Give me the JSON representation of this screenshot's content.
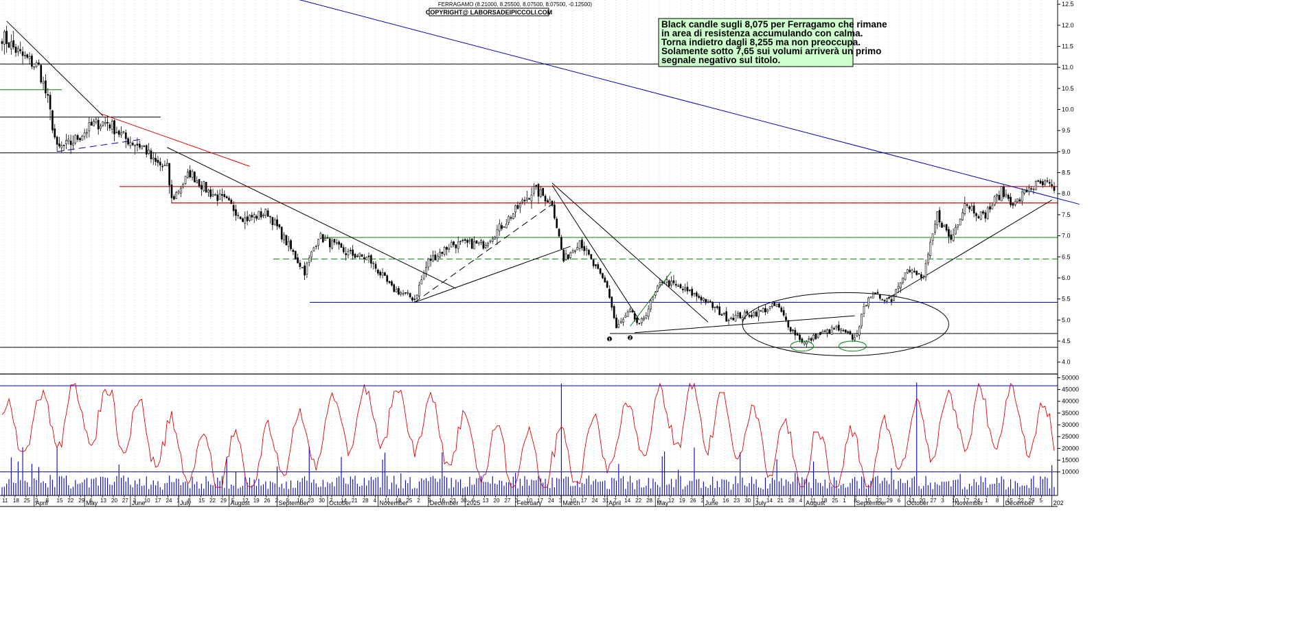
{
  "chart_data": {
    "type": "candlestick",
    "header": "FERRAGAMO (8.21000, 8.25500, 8.07500, 8.07500, -0.12500)",
    "copyright": "COPYRIGHT@ LABORSADEIPICCOLI.COM",
    "annotation": [
      "Black candle sugli 8,075 per Ferragamo che rimane",
      "in area di resistenza accumulando con calma.",
      "Torna indietro dagli 8,255 ma non preoccupa.",
      "Solamente sotto 7,65 sui volumi arriverà un primo",
      "segnale negativo sul titolo."
    ],
    "price_axis": {
      "ticks": [
        "4.0",
        "4.5",
        "5.0",
        "5.5",
        "6.0",
        "6.5",
        "7.0",
        "7.5",
        "8.0",
        "8.5",
        "9.0",
        "9.5",
        "10.0",
        "10.5",
        "11.0",
        "11.5",
        "12.0",
        "12.5"
      ],
      "range": [
        3.75,
        12.6
      ]
    },
    "volume_axis": {
      "ticks": [
        "10000",
        "15000",
        "20000",
        "25000",
        "30000",
        "35000",
        "40000",
        "45000",
        "50000"
      ],
      "range": [
        0,
        51000
      ]
    },
    "horizontal_levels": [
      {
        "value": 11.08,
        "color": "#000000",
        "style": "solid"
      },
      {
        "value": 9.82,
        "color": "#000000",
        "style": "solid"
      },
      {
        "value": 10.47,
        "color": "#008000",
        "style": "solid"
      },
      {
        "value": 8.97,
        "color": "#000000",
        "style": "solid"
      },
      {
        "value": 8.17,
        "color": "#e00000",
        "style": "solid"
      },
      {
        "value": 7.78,
        "color": "#e00000",
        "style": "solid"
      },
      {
        "value": 6.96,
        "color": "#008000",
        "style": "solid"
      },
      {
        "value": 6.45,
        "color": "#008000",
        "style": "dashed"
      },
      {
        "value": 5.42,
        "color": "#0000c0",
        "style": "solid"
      },
      {
        "value": 4.68,
        "color": "#000000",
        "style": "solid"
      },
      {
        "value": 4.35,
        "color": "#000000",
        "style": "solid"
      }
    ],
    "candle_count": 460,
    "price_anchors": [
      {
        "i": 0,
        "p": 11.75
      },
      {
        "i": 8,
        "p": 11.3
      },
      {
        "i": 16,
        "p": 11.0
      },
      {
        "i": 20,
        "p": 10.2
      },
      {
        "i": 24,
        "p": 9.05
      },
      {
        "i": 30,
        "p": 9.2
      },
      {
        "i": 40,
        "p": 9.65
      },
      {
        "i": 46,
        "p": 9.7
      },
      {
        "i": 54,
        "p": 9.3
      },
      {
        "i": 62,
        "p": 9.1
      },
      {
        "i": 66,
        "p": 8.75
      },
      {
        "i": 72,
        "p": 8.6
      },
      {
        "i": 74,
        "p": 7.85
      },
      {
        "i": 82,
        "p": 8.5
      },
      {
        "i": 90,
        "p": 8.05
      },
      {
        "i": 98,
        "p": 7.8
      },
      {
        "i": 106,
        "p": 7.4
      },
      {
        "i": 116,
        "p": 7.55
      },
      {
        "i": 124,
        "p": 6.85
      },
      {
        "i": 132,
        "p": 6.15
      },
      {
        "i": 138,
        "p": 7.0
      },
      {
        "i": 150,
        "p": 6.6
      },
      {
        "i": 160,
        "p": 6.45
      },
      {
        "i": 170,
        "p": 5.75
      },
      {
        "i": 180,
        "p": 5.5
      },
      {
        "i": 186,
        "p": 6.4
      },
      {
        "i": 196,
        "p": 6.8
      },
      {
        "i": 210,
        "p": 6.8
      },
      {
        "i": 220,
        "p": 7.35
      },
      {
        "i": 232,
        "p": 8.1
      },
      {
        "i": 240,
        "p": 7.8
      },
      {
        "i": 245,
        "p": 6.4
      },
      {
        "i": 252,
        "p": 6.9
      },
      {
        "i": 258,
        "p": 6.3
      },
      {
        "i": 264,
        "p": 5.8
      },
      {
        "i": 268,
        "p": 4.8
      },
      {
        "i": 274,
        "p": 5.2
      },
      {
        "i": 278,
        "p": 4.85
      },
      {
        "i": 288,
        "p": 5.95
      },
      {
        "i": 296,
        "p": 5.75
      },
      {
        "i": 306,
        "p": 5.5
      },
      {
        "i": 316,
        "p": 5.05
      },
      {
        "i": 328,
        "p": 5.15
      },
      {
        "i": 338,
        "p": 5.35
      },
      {
        "i": 344,
        "p": 4.8
      },
      {
        "i": 350,
        "p": 4.45
      },
      {
        "i": 356,
        "p": 4.65
      },
      {
        "i": 364,
        "p": 4.8
      },
      {
        "i": 372,
        "p": 4.55
      },
      {
        "i": 378,
        "p": 5.6
      },
      {
        "i": 388,
        "p": 5.5
      },
      {
        "i": 394,
        "p": 6.2
      },
      {
        "i": 402,
        "p": 6.0
      },
      {
        "i": 408,
        "p": 7.5
      },
      {
        "i": 414,
        "p": 6.9
      },
      {
        "i": 420,
        "p": 7.8
      },
      {
        "i": 428,
        "p": 7.45
      },
      {
        "i": 436,
        "p": 8.05
      },
      {
        "i": 442,
        "p": 7.75
      },
      {
        "i": 448,
        "p": 8.15
      },
      {
        "i": 452,
        "p": 8.2
      },
      {
        "i": 456,
        "p": 8.21
      },
      {
        "i": 459,
        "p": 8.075
      }
    ],
    "oscillator_color": "#e00000",
    "volume_color": "#0000cc",
    "trendlines": [
      {
        "color": "#0000c0",
        "style": "solid",
        "from": {
          "i": -10,
          "p": 14.6
        },
        "to": {
          "i": 470,
          "p": 7.75
        }
      },
      {
        "color": "#000000",
        "style": "solid",
        "from": {
          "i": 2,
          "p": 12.1
        },
        "to": {
          "i": 44,
          "p": 9.85
        }
      },
      {
        "color": "#e00000",
        "style": "solid",
        "from": {
          "i": 43,
          "p": 9.9
        },
        "to": {
          "i": 108,
          "p": 8.65
        }
      },
      {
        "color": "#000000",
        "style": "solid",
        "from": {
          "i": 72,
          "p": 9.1
        },
        "to": {
          "i": 198,
          "p": 5.75
        }
      },
      {
        "color": "#000000",
        "style": "solid",
        "from": {
          "i": 180,
          "p": 5.42
        },
        "to": {
          "i": 248,
          "p": 6.75
        }
      },
      {
        "color": "#000000",
        "style": "dashed",
        "from": {
          "i": 180,
          "p": 5.42
        },
        "to": {
          "i": 240,
          "p": 7.75
        }
      },
      {
        "color": "#000000",
        "style": "solid",
        "from": {
          "i": 240,
          "p": 8.25
        },
        "to": {
          "i": 308,
          "p": 4.95
        }
      },
      {
        "color": "#000000",
        "style": "solid",
        "from": {
          "i": 240,
          "p": 8.2
        },
        "to": {
          "i": 278,
          "p": 5.0
        }
      },
      {
        "color": "#000000",
        "style": "solid",
        "from": {
          "i": 276,
          "p": 4.7
        },
        "to": {
          "i": 372,
          "p": 5.1
        }
      },
      {
        "color": "#000000",
        "style": "solid",
        "from": {
          "i": 386,
          "p": 5.5
        },
        "to": {
          "i": 458,
          "p": 7.85
        }
      },
      {
        "color": "#0000c0",
        "style": "dashed",
        "from": {
          "i": 24,
          "p": 9.0
        },
        "to": {
          "i": 62,
          "p": 9.3
        }
      },
      {
        "color": "#008000",
        "style": "solid",
        "from": {
          "i": 274,
          "p": 4.85
        },
        "to": {
          "i": 292,
          "p": 6.15
        }
      }
    ],
    "ellipses": [
      {
        "i": 368,
        "p": 4.9,
        "rx_i": 45,
        "rp": 0.75,
        "color": "#000000"
      },
      {
        "i": 349,
        "p": 4.38,
        "rx_i": 5,
        "rp": 0.12,
        "color": "#008000"
      },
      {
        "i": 371,
        "p": 4.38,
        "rx_i": 6,
        "rp": 0.12,
        "color": "#008000"
      }
    ],
    "markers": [
      {
        "label": "1",
        "i": 265,
        "p": 4.55
      },
      {
        "label": "2",
        "i": 274,
        "p": 4.58
      }
    ],
    "month_labels": [
      {
        "label": "April",
        "i": 14
      },
      {
        "label": "May",
        "i": 36
      },
      {
        "label": "June",
        "i": 56
      },
      {
        "label": "July",
        "i": 77
      },
      {
        "label": "August",
        "i": 99
      },
      {
        "label": "September",
        "i": 120
      },
      {
        "label": "October",
        "i": 142
      },
      {
        "label": "November",
        "i": 164
      },
      {
        "label": "December",
        "i": 186
      },
      {
        "label": "2025",
        "i": 202
      },
      {
        "label": "February",
        "i": 224
      },
      {
        "label": "March",
        "i": 244
      },
      {
        "label": "April",
        "i": 264
      },
      {
        "label": "May",
        "i": 285
      },
      {
        "label": "June",
        "i": 306
      },
      {
        "label": "July",
        "i": 328
      },
      {
        "label": "August",
        "i": 350
      },
      {
        "label": "September",
        "i": 372
      },
      {
        "label": "October",
        "i": 394
      },
      {
        "label": "November",
        "i": 415
      },
      {
        "label": "December",
        "i": 437
      },
      {
        "label": "202",
        "i": 458
      }
    ],
    "day_labels": [
      "11",
      "18",
      "25",
      "2",
      "8",
      "15",
      "22",
      "29",
      "6",
      "13",
      "20",
      "27",
      "3",
      "10",
      "17",
      "24",
      "1",
      "8",
      "15",
      "22",
      "29",
      "5",
      "12",
      "19",
      "26",
      "2",
      "9",
      "16",
      "23",
      "30",
      "7",
      "14",
      "21",
      "28",
      "4",
      "11",
      "18",
      "25",
      "2",
      "9",
      "16",
      "23",
      "30",
      "6",
      "13",
      "20",
      "27",
      "3",
      "10",
      "17",
      "24",
      "3",
      "10",
      "17",
      "24",
      "31",
      "7",
      "14",
      "22",
      "28",
      "5",
      "12",
      "19",
      "26",
      "2",
      "9",
      "16",
      "23",
      "30",
      "7",
      "14",
      "21",
      "28",
      "4",
      "11",
      "18",
      "25",
      "1",
      "8",
      "15",
      "22",
      "29",
      "6",
      "13",
      "20",
      "27",
      "3",
      "10",
      "17",
      "24",
      "1",
      "8",
      "15",
      "22",
      "29",
      "5"
    ],
    "grid": "vertical-dotted",
    "legend": "none"
  }
}
